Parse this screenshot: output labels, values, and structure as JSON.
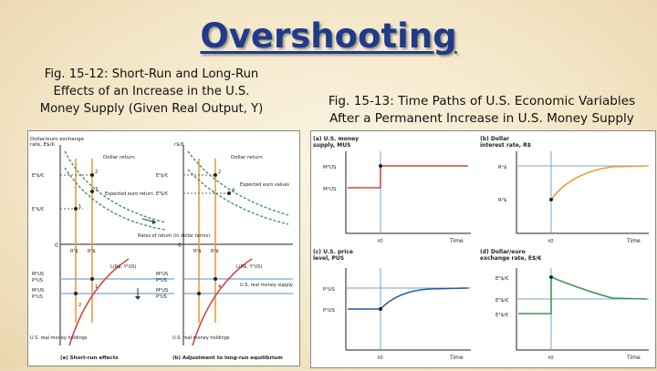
{
  "slide": {
    "title": "Overshooting",
    "left_caption_lines": [
      "Fig. 15-12: Short-Run and Long-Run",
      "Effects of an Increase in the U.S.",
      "Money Supply (Given Real Output, Y)"
    ],
    "right_caption_lines": [
      "Fig. 15-13: Time Paths of U.S. Economic Variables",
      "After a Permanent Increase in U.S. Money Supply"
    ]
  },
  "left_figure": {
    "yaxis_label_1": "Dollar/euro exchange",
    "yaxis_label_2": "rate, E$/€",
    "yaxis_label_3": "r$/€",
    "dollar_return": "Dollar return",
    "expected_euro_return": "Expected euro return",
    "expected_euro_values": "Expected euro values",
    "rates_of_return": "Rates of return (in dollar terms)",
    "real_money_supply": "U.S. real money supply",
    "real_money_holdings": "U.S. real money holdings",
    "panel_a_label": "(a) Short-run effects",
    "panel_b_label": "(b) Adjustment to long-run equilibrium",
    "axis_zero": "0",
    "ticks_e": [
      "E²$/€",
      "E¹$/€",
      "E³$/€"
    ],
    "ticks_m": [
      "M²US",
      "P¹US",
      "M¹US",
      "P¹US"
    ],
    "ticks_m_right": [
      "M²US",
      "P²US",
      "M²US",
      "P¹US"
    ],
    "ticks_r": [
      "R¹$",
      "R²$"
    ],
    "ticks_r_right": [
      "R²$",
      "R¹$"
    ],
    "liquidity_label": "L(R$, Y¹US)",
    "liquidity_label_right": "L(R$, Y¹US)",
    "point_numbers": [
      "1",
      "2",
      "3",
      "4",
      "1",
      "2",
      "2",
      "4"
    ]
  },
  "right_figure": {
    "panels": [
      {
        "label_1": "(a) U.S. money",
        "label_2": "supply, MUS",
        "y_ticks": [
          "M²US",
          "M¹US"
        ],
        "x_tick": "t0",
        "x_label": "Time"
      },
      {
        "label_1": "(b) Dollar",
        "label_2": "interest rate, R$",
        "y_ticks": [
          "R¹$",
          "R²$"
        ],
        "x_tick": "t0",
        "x_label": "Time"
      },
      {
        "label_1": "(c) U.S. price",
        "label_2": "level, PUS",
        "y_ticks": [
          "P²US",
          "P¹US"
        ],
        "x_tick": "t0",
        "x_label": "Time"
      },
      {
        "label_1": "(d) Dollar/euro",
        "label_2": "exchange rate, E$/€",
        "y_ticks": [
          "E²$/€",
          "E³$/€",
          "E¹$/€"
        ],
        "x_tick": "t0",
        "x_label": "Time"
      }
    ],
    "colors": {
      "red": "#d9463a",
      "orange": "#ef9a3c",
      "blue": "#1f5fa8",
      "green": "#3a9a55",
      "gridline": "#7aa3cc"
    }
  }
}
